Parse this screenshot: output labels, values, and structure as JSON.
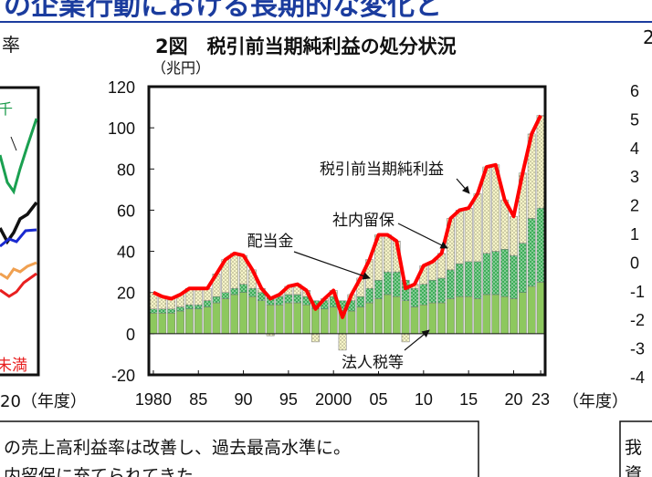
{
  "banner": {
    "title": "の企業行動における長期的な変化と"
  },
  "left_panel": {
    "title_fragment": "率",
    "label_fragment": "千",
    "legend_fragment": "未満",
    "x_label_fragment": "20（年度）"
  },
  "chart_data": {
    "type": "bar",
    "stacked": true,
    "title": "2図　税引前当期純利益の処分状況",
    "y_label": "（兆円）",
    "x_label": "（年度）",
    "x": [
      1980,
      1981,
      1982,
      1983,
      1984,
      1985,
      1986,
      1987,
      1988,
      1989,
      1990,
      1991,
      1992,
      1993,
      1994,
      1995,
      1996,
      1997,
      1998,
      1999,
      2000,
      2001,
      2002,
      2003,
      2004,
      2005,
      2006,
      2007,
      2008,
      2009,
      2010,
      2011,
      2012,
      2013,
      2014,
      2015,
      2016,
      2017,
      2018,
      2019,
      2020,
      2021,
      2022,
      2023
    ],
    "xlim": [
      1979.5,
      2023.5
    ],
    "xticks": [
      {
        "value": 1980,
        "label": "1980"
      },
      {
        "value": 1985,
        "label": "85"
      },
      {
        "value": 1990,
        "label": "90"
      },
      {
        "value": 1995,
        "label": "95"
      },
      {
        "value": 2000,
        "label": "2000"
      },
      {
        "value": 2005,
        "label": "05"
      },
      {
        "value": 2010,
        "label": "10"
      },
      {
        "value": 2015,
        "label": "15"
      },
      {
        "value": 2020,
        "label": "20"
      },
      {
        "value": 2023,
        "label": "23"
      }
    ],
    "ylim": [
      -20,
      120
    ],
    "yticks": [
      -20,
      0,
      20,
      40,
      60,
      80,
      100,
      120
    ],
    "series": [
      {
        "name": "法人税等",
        "type": "bar",
        "color": "#8dc85e",
        "pattern": "solid",
        "values": [
          10,
          10,
          10,
          11,
          12,
          12,
          13,
          15,
          17,
          19,
          20,
          18,
          16,
          14,
          14,
          15,
          15,
          14,
          12,
          12,
          13,
          11,
          11,
          13,
          15,
          17,
          19,
          18,
          16,
          13,
          14,
          15,
          15,
          17,
          18,
          18,
          17,
          19,
          19,
          18,
          17,
          20,
          23,
          25
        ]
      },
      {
        "name": "配当金",
        "type": "bar",
        "color": "#3fae5a",
        "pattern": "dots",
        "values": [
          2,
          2,
          2,
          2,
          2,
          2,
          3,
          3,
          3,
          3,
          4,
          4,
          4,
          4,
          4,
          4,
          4,
          4,
          4,
          4,
          5,
          5,
          5,
          5,
          7,
          9,
          11,
          12,
          10,
          9,
          10,
          11,
          12,
          14,
          16,
          17,
          18,
          20,
          21,
          23,
          21,
          24,
          33,
          36
        ]
      },
      {
        "name": "社内留保",
        "type": "bar",
        "color": "#f6f4c8",
        "pattern": "dots",
        "values": [
          8,
          6,
          5,
          6,
          8,
          8,
          6,
          11,
          16,
          17,
          14,
          9,
          2,
          -1,
          1,
          4,
          5,
          3,
          -4,
          1,
          3,
          -8,
          3,
          9,
          14,
          22,
          18,
          15,
          -4,
          2,
          9,
          9,
          12,
          25,
          26,
          26,
          33,
          42,
          42,
          24,
          19,
          34,
          41,
          45
        ]
      },
      {
        "name": "税引前当期純利益",
        "type": "line",
        "color": "#ff0000",
        "values": [
          20,
          18,
          17,
          19,
          22,
          22,
          22,
          29,
          36,
          39,
          38,
          31,
          22,
          17,
          19,
          23,
          24,
          21,
          12,
          17,
          21,
          8,
          19,
          27,
          36,
          48,
          48,
          45,
          22,
          24,
          33,
          35,
          39,
          56,
          60,
          61,
          68,
          81,
          82,
          65,
          57,
          78,
          97,
          106
        ]
      }
    ],
    "annotations": [
      {
        "text": "税引前当期純利益"
      },
      {
        "text": "社内留保"
      },
      {
        "text": "配当金"
      },
      {
        "text": "法人税等"
      }
    ]
  },
  "right_panel": {
    "title_fragment": "2",
    "tick_fragments": [
      "6",
      "5",
      "4",
      "3",
      "2",
      "1",
      "0",
      "-1",
      "-2",
      "-3",
      "-4"
    ]
  },
  "notes": {
    "left": [
      "の売上高利益率は改善し、過去最高水準に。",
      "内留保に充てられてきた。"
    ],
    "right": [
      "我",
      "資"
    ]
  }
}
